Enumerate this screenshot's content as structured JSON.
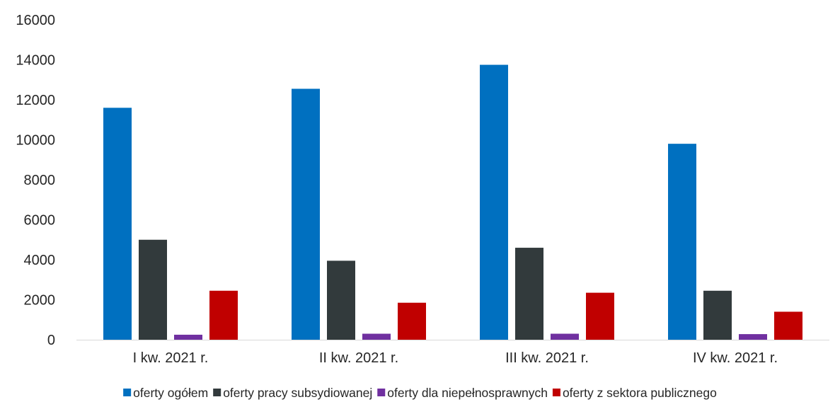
{
  "chart_data": {
    "type": "bar",
    "title": "",
    "xlabel": "",
    "ylabel": "",
    "ylim": [
      0,
      16000
    ],
    "yticks": [
      0,
      2000,
      4000,
      6000,
      8000,
      10000,
      12000,
      14000,
      16000
    ],
    "ytick_labels": [
      "0",
      "2000",
      "4000",
      "6000",
      "8000",
      "10000",
      "12000",
      "14000",
      "16000"
    ],
    "grid": false,
    "legend_position": "bottom",
    "categories": [
      "I kw. 2021 r.",
      "II kw. 2021 r.",
      "III kw. 2021 r.",
      "IV kw. 2021 r."
    ],
    "series": [
      {
        "name": "oferty ogółem",
        "color": "#0070C0",
        "values": [
          11600,
          12550,
          13750,
          9800
        ]
      },
      {
        "name": "oferty pracy subsydiowanej",
        "color": "#323A3C",
        "values": [
          5000,
          3950,
          4600,
          2450
        ]
      },
      {
        "name": "oferty dla niepełnosprawnych",
        "color": "#7030A0",
        "values": [
          250,
          300,
          300,
          280
        ]
      },
      {
        "name": "oferty z sektora publicznego",
        "color": "#C00000",
        "values": [
          2450,
          1850,
          2350,
          1400
        ]
      }
    ]
  }
}
